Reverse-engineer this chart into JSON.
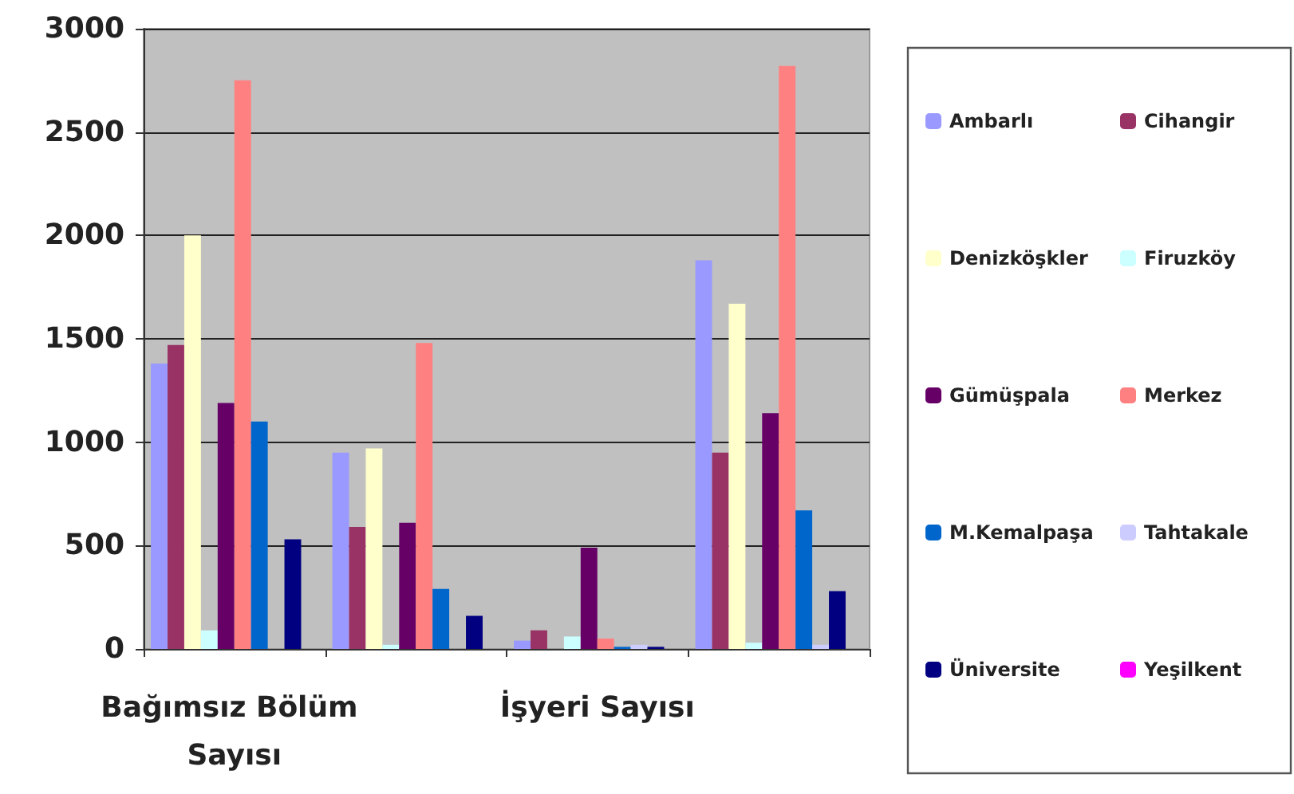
{
  "chart_data": {
    "type": "bar",
    "categories": [
      "Bağımsız Bölüm Sayısı",
      null,
      "İşyeri Sayısı",
      null
    ],
    "series": [
      {
        "name": "Ambarlı",
        "color": "#9999ff",
        "values": [
          1380,
          950,
          40,
          1880
        ]
      },
      {
        "name": "Cihangir",
        "color": "#993366",
        "values": [
          1470,
          590,
          90,
          950
        ]
      },
      {
        "name": "Denizköşkler",
        "color": "#ffffcc",
        "values": [
          2000,
          970,
          0,
          1670
        ]
      },
      {
        "name": "Firuzköy",
        "color": "#ccffff",
        "values": [
          90,
          20,
          60,
          30
        ]
      },
      {
        "name": "Gümüşpala",
        "color": "#660066",
        "values": [
          1190,
          610,
          490,
          1140
        ]
      },
      {
        "name": "Merkez",
        "color": "#ff8080",
        "values": [
          2750,
          1480,
          50,
          2820
        ]
      },
      {
        "name": "M.Kemalpaşa",
        "color": "#0066cc",
        "values": [
          1100,
          290,
          10,
          670
        ]
      },
      {
        "name": "Tahtakale",
        "color": "#ccccff",
        "values": [
          0,
          0,
          20,
          20
        ]
      },
      {
        "name": "Üniversite",
        "color": "#000080",
        "values": [
          530,
          160,
          10,
          280
        ]
      },
      {
        "name": "Yeşilkent",
        "color": "#ff00ff",
        "values": [
          0,
          0,
          0,
          0
        ]
      }
    ],
    "ylim": [
      0,
      3000
    ],
    "yticks": [
      0,
      500,
      1000,
      1500,
      2000,
      2500,
      3000
    ],
    "grid": "y",
    "legend": "right"
  }
}
